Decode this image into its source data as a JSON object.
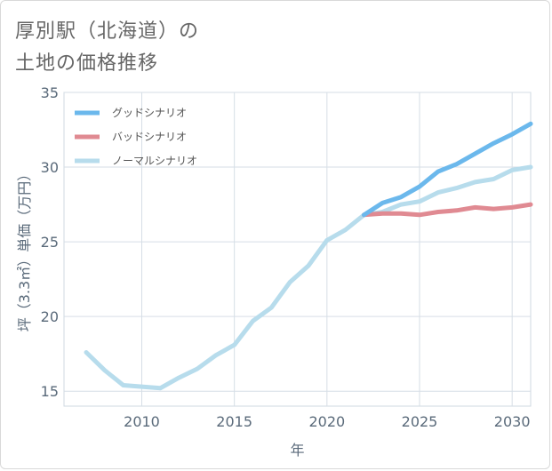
{
  "header": {
    "title_line1": "厚別駅（北海道）の",
    "title_line2": "土地の価格推移"
  },
  "chart_data": {
    "type": "line",
    "xlabel": "年",
    "ylabel": "坪（3.3㎡）単価（万円）",
    "xlim": [
      2005.8,
      2031
    ],
    "ylim": [
      14,
      35
    ],
    "xticks": [
      2010,
      2015,
      2020,
      2025,
      2030
    ],
    "yticks": [
      15,
      20,
      25,
      30,
      35
    ],
    "grid": true,
    "legend_position": "top-left",
    "series": [
      {
        "name": "グッドシナリオ",
        "color": "#6bb8ec",
        "x": [
          2022,
          2023,
          2024,
          2025,
          2026,
          2027,
          2028,
          2029,
          2030,
          2031
        ],
        "y": [
          26.8,
          27.6,
          28.0,
          28.7,
          29.7,
          30.2,
          30.9,
          31.6,
          32.2,
          32.9
        ]
      },
      {
        "name": "バッドシナリオ",
        "color": "#e08a92",
        "x": [
          2022,
          2023,
          2024,
          2025,
          2026,
          2027,
          2028,
          2029,
          2030,
          2031
        ],
        "y": [
          26.8,
          26.9,
          26.9,
          26.8,
          27.0,
          27.1,
          27.3,
          27.2,
          27.3,
          27.5
        ]
      },
      {
        "name": "ノーマルシナリオ",
        "color": "#b7dcec",
        "x": [
          2007,
          2008,
          2009,
          2010,
          2011,
          2012,
          2013,
          2014,
          2015,
          2016,
          2017,
          2018,
          2019,
          2020,
          2021,
          2022,
          2023,
          2024,
          2025,
          2026,
          2027,
          2028,
          2029,
          2030,
          2031
        ],
        "y": [
          17.6,
          16.4,
          15.4,
          15.3,
          15.2,
          15.9,
          16.5,
          17.4,
          18.1,
          19.7,
          20.6,
          22.3,
          23.4,
          25.1,
          25.8,
          26.8,
          27.0,
          27.5,
          27.7,
          28.3,
          28.6,
          29.0,
          29.2,
          29.8,
          30.0
        ]
      }
    ]
  }
}
